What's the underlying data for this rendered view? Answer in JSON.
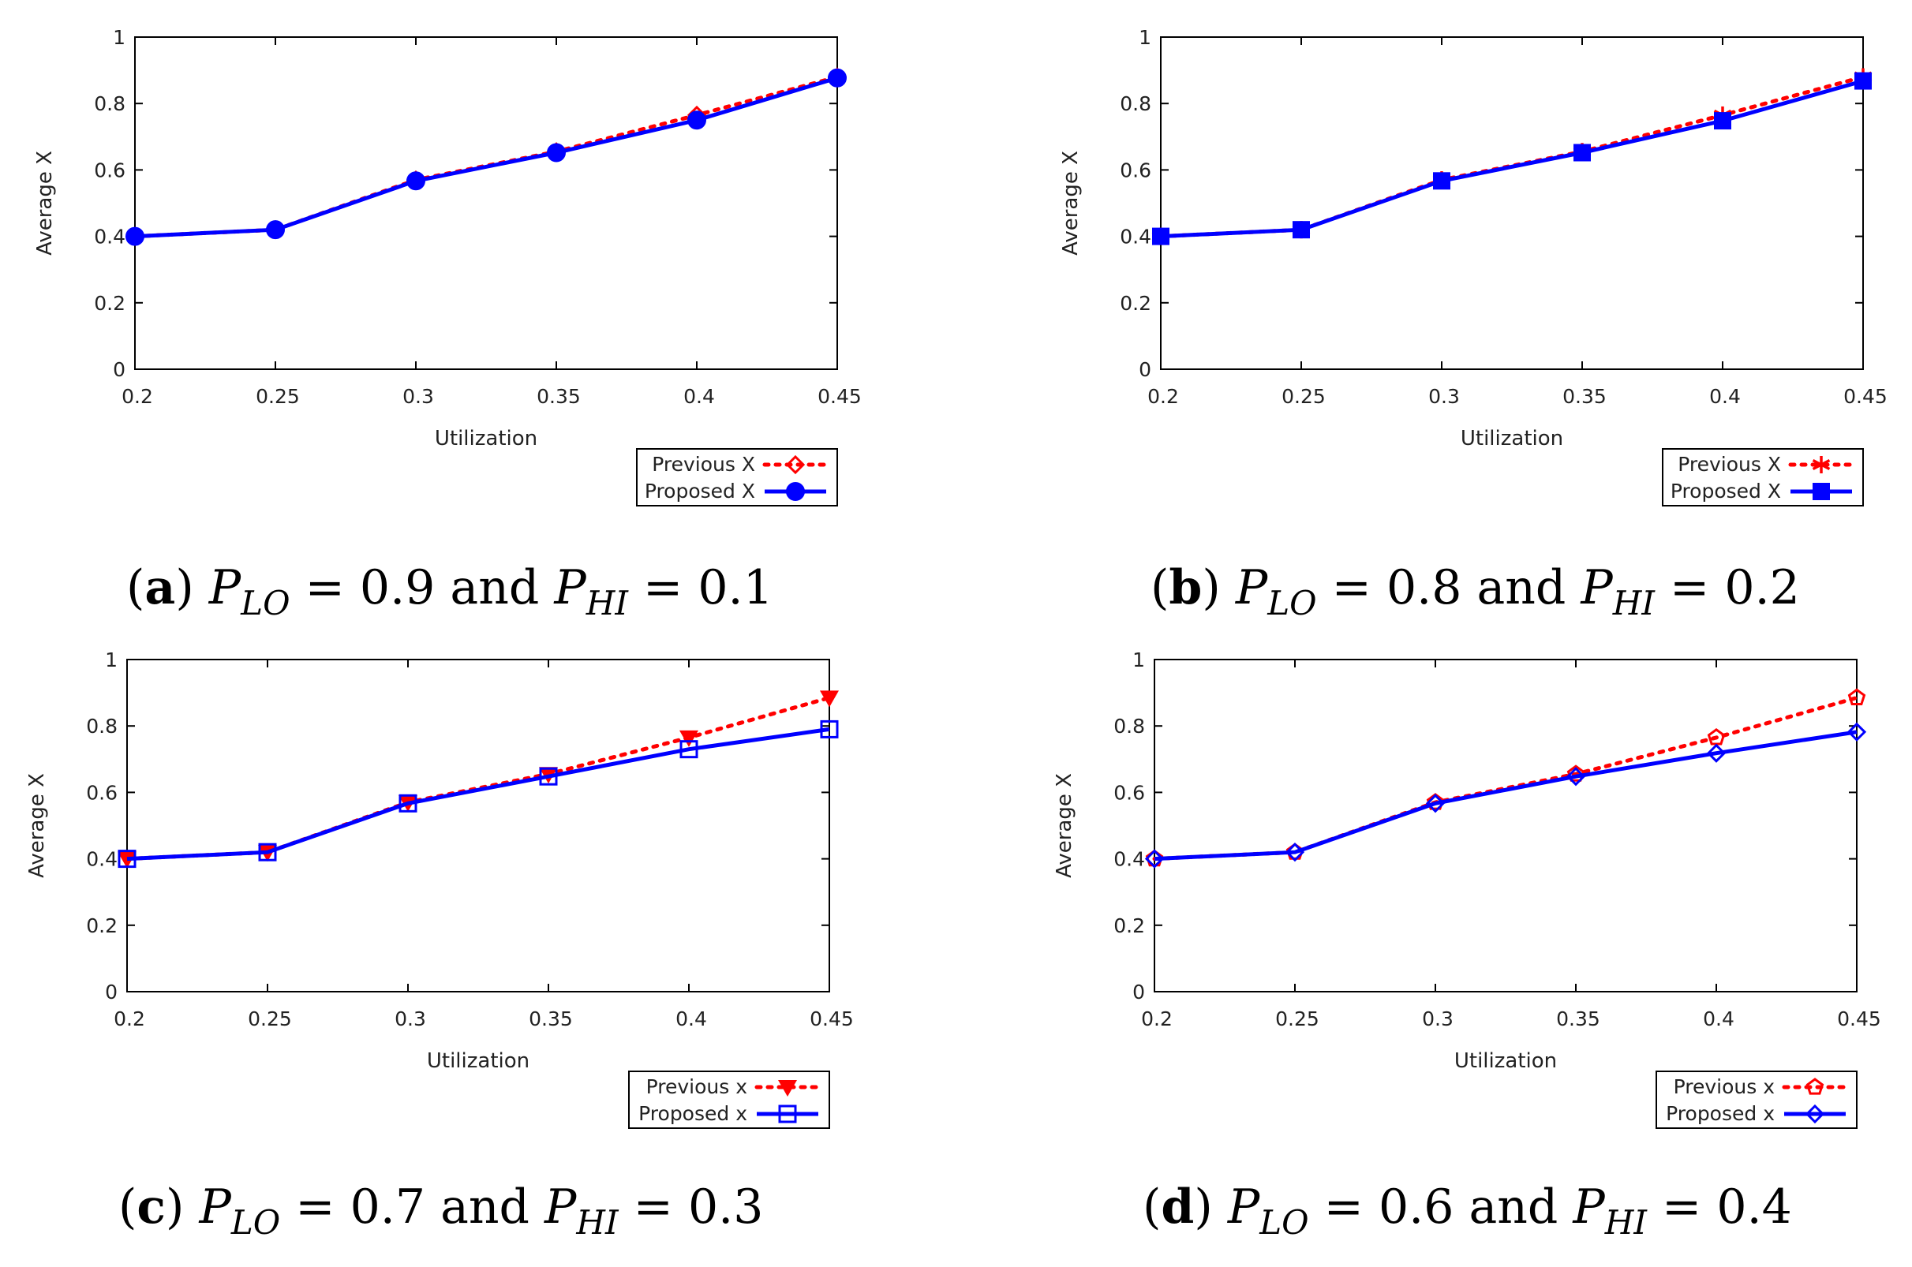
{
  "chart_data": [
    {
      "panel": "a",
      "type": "line",
      "categories": [
        0.2,
        0.25,
        0.3,
        0.35,
        0.4,
        0.45
      ],
      "x_tick_labels": [
        "0.2",
        "0.25",
        "0.3",
        "0.35",
        "0.4",
        "0.45"
      ],
      "y_tick_labels": [
        "0",
        "0.2",
        "0.4",
        "0.6",
        "0.8",
        "1"
      ],
      "xlabel": "Utilization",
      "ylabel": "Average X",
      "xlim": [
        0.2,
        0.45
      ],
      "ylim": [
        0,
        1
      ],
      "grid": false,
      "legend_position": "bottom-right-outside",
      "series": [
        {
          "name": "Previous X",
          "values": [
            0.4,
            0.42,
            0.57,
            0.655,
            0.765,
            0.88
          ],
          "color": "#ff0000",
          "dash": "dotted",
          "marker": "diamond-open"
        },
        {
          "name": "Proposed X",
          "values": [
            0.4,
            0.42,
            0.567,
            0.652,
            0.75,
            0.877
          ],
          "color": "#0000ff",
          "dash": "solid",
          "marker": "circle-filled"
        }
      ],
      "caption": {
        "label": "a",
        "p_lo_value": "0.9",
        "p_hi_value": "0.1"
      }
    },
    {
      "panel": "b",
      "type": "line",
      "categories": [
        0.2,
        0.25,
        0.3,
        0.35,
        0.4,
        0.45
      ],
      "x_tick_labels": [
        "0.2",
        "0.25",
        "0.3",
        "0.35",
        "0.4",
        "0.45"
      ],
      "y_tick_labels": [
        "0",
        "0.2",
        "0.4",
        "0.6",
        "0.8",
        "1"
      ],
      "xlabel": "Utilization",
      "ylabel": "Average X",
      "xlim": [
        0.2,
        0.45
      ],
      "ylim": [
        0,
        1
      ],
      "grid": false,
      "legend_position": "bottom-right-outside",
      "series": [
        {
          "name": "Previous X",
          "values": [
            0.4,
            0.42,
            0.57,
            0.655,
            0.765,
            0.88
          ],
          "color": "#ff0000",
          "dash": "dotted",
          "marker": "asterisk"
        },
        {
          "name": "Proposed X",
          "values": [
            0.4,
            0.42,
            0.567,
            0.652,
            0.748,
            0.868
          ],
          "color": "#0000ff",
          "dash": "solid",
          "marker": "square-filled"
        }
      ],
      "caption": {
        "label": "b",
        "p_lo_value": "0.8",
        "p_hi_value": "0.2"
      }
    },
    {
      "panel": "c",
      "type": "line",
      "categories": [
        0.2,
        0.25,
        0.3,
        0.35,
        0.4,
        0.45
      ],
      "x_tick_labels": [
        "0.2",
        "0.25",
        "0.3",
        "0.35",
        "0.4",
        "0.45"
      ],
      "y_tick_labels": [
        "0",
        "0.2",
        "0.4",
        "0.6",
        "0.8",
        "1"
      ],
      "xlabel": "Utilization",
      "ylabel": "Average X",
      "xlim": [
        0.2,
        0.45
      ],
      "ylim": [
        0,
        1
      ],
      "grid": false,
      "legend_position": "bottom-right-outside",
      "series": [
        {
          "name": "Previous x",
          "values": [
            0.4,
            0.42,
            0.57,
            0.655,
            0.765,
            0.885
          ],
          "color": "#ff0000",
          "dash": "dotted",
          "marker": "triangle-down-filled"
        },
        {
          "name": "Proposed x",
          "values": [
            0.4,
            0.42,
            0.567,
            0.648,
            0.73,
            0.79
          ],
          "color": "#0000ff",
          "dash": "solid",
          "marker": "square-open"
        }
      ],
      "caption": {
        "label": "c",
        "p_lo_value": "0.7",
        "p_hi_value": "0.3"
      }
    },
    {
      "panel": "d",
      "type": "line",
      "categories": [
        0.2,
        0.25,
        0.3,
        0.35,
        0.4,
        0.45
      ],
      "x_tick_labels": [
        "0.2",
        "0.25",
        "0.3",
        "0.35",
        "0.4",
        "0.45"
      ],
      "y_tick_labels": [
        "0",
        "0.2",
        "0.4",
        "0.6",
        "0.8",
        "1"
      ],
      "xlabel": "Utilization",
      "ylabel": "Average X",
      "xlim": [
        0.2,
        0.45
      ],
      "ylim": [
        0,
        1
      ],
      "grid": false,
      "legend_position": "bottom-right-outside",
      "series": [
        {
          "name": "Previous x",
          "values": [
            0.4,
            0.42,
            0.57,
            0.655,
            0.765,
            0.885
          ],
          "color": "#ff0000",
          "dash": "dotted",
          "marker": "pentagon-open"
        },
        {
          "name": "Proposed x",
          "values": [
            0.4,
            0.42,
            0.567,
            0.648,
            0.718,
            0.782
          ],
          "color": "#0000ff",
          "dash": "solid",
          "marker": "diamond-open"
        }
      ],
      "caption": {
        "label": "d",
        "p_lo_value": "0.6",
        "p_hi_value": "0.4"
      }
    }
  ]
}
